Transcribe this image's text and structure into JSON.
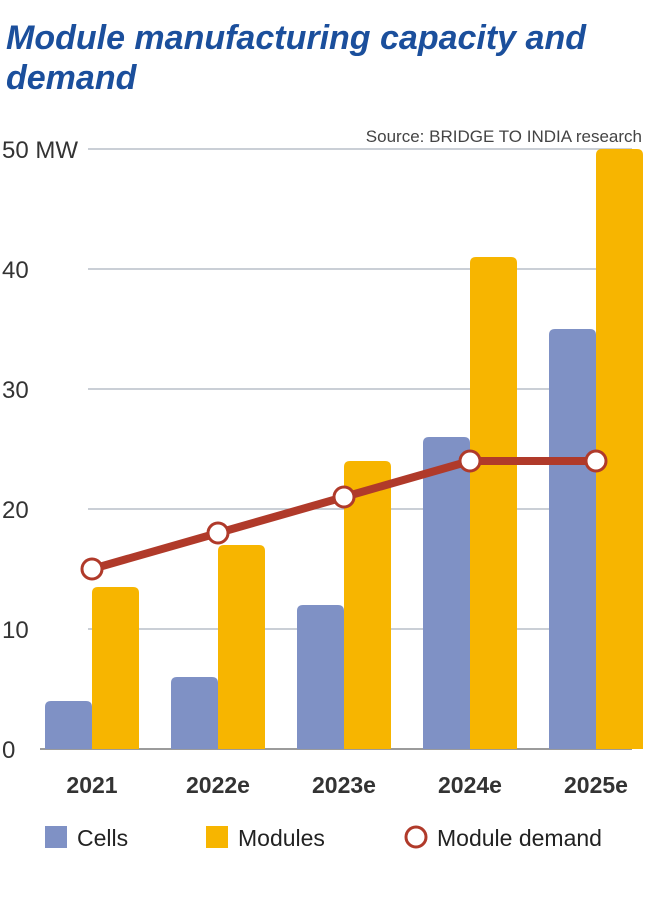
{
  "chart_data": {
    "type": "bar",
    "title": "Module manufacturing capacity and demand",
    "source": "Source: BRIDGE TO INDIA research",
    "y_unit": "MW",
    "ylim": [
      0,
      50
    ],
    "y_ticks": [
      "0",
      "10",
      "20",
      "30",
      "40",
      "50"
    ],
    "categories": [
      "2021",
      "2022e",
      "2023e",
      "2024e",
      "2025e"
    ],
    "series": [
      {
        "name": "Cells",
        "kind": "bar",
        "color": "#7f91c5",
        "values": [
          4,
          6,
          12,
          26,
          35
        ]
      },
      {
        "name": "Modules",
        "kind": "bar",
        "color": "#f7b500",
        "values": [
          13.5,
          17,
          24,
          41,
          50
        ]
      },
      {
        "name": "Module demand",
        "kind": "line",
        "color": "#b03a2a",
        "values": [
          15,
          18,
          21,
          24,
          24
        ]
      }
    ],
    "grid": true,
    "legend_position": "bottom"
  }
}
